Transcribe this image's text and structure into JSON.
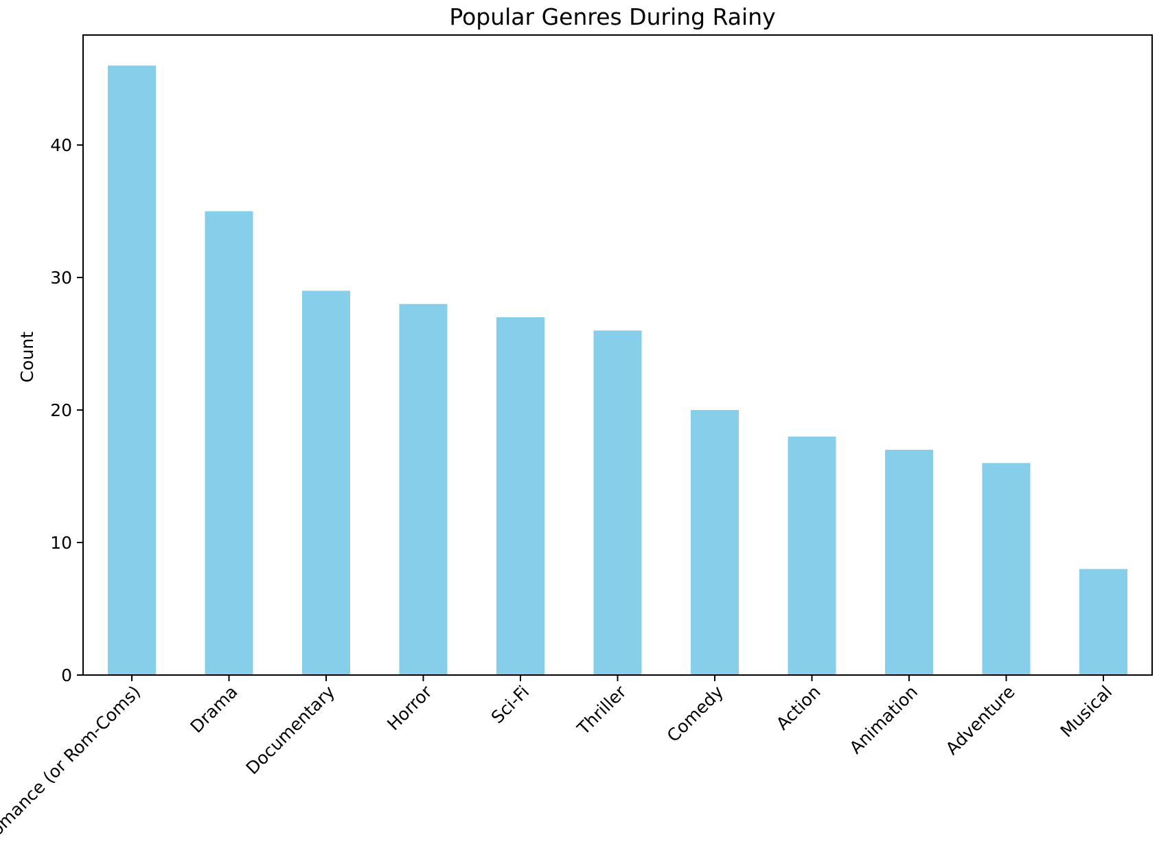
{
  "colors": {
    "background": "#ffffff",
    "bar": "#87CEEB",
    "axis": "#000000",
    "text": "#000000"
  },
  "chart_data": {
    "type": "bar",
    "title": "Popular Genres During Rainy",
    "xlabel": "",
    "ylabel": "Count",
    "categories": [
      "Romance (or Rom-Coms)",
      "Drama",
      "Documentary",
      "Horror",
      "Sci-Fi",
      "Thriller",
      "Comedy",
      "Action",
      "Animation",
      "Adventure",
      "Musical"
    ],
    "values": [
      46,
      35,
      29,
      28,
      27,
      26,
      20,
      18,
      17,
      16,
      8
    ],
    "ylim": [
      0,
      48.3
    ],
    "yticks": [
      0,
      10,
      20,
      30,
      40
    ],
    "grid": false,
    "legend": "none",
    "xtick_rotation": -45
  }
}
